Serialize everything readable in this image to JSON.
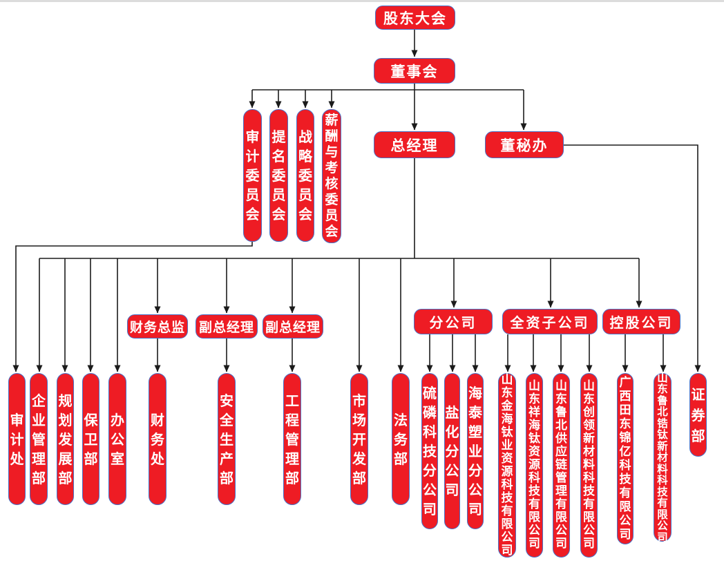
{
  "colors": {
    "node_fill": "#ee1c24",
    "node_border": "#4672c8",
    "connector_line": "#1b1b1b",
    "node_text": "#ffffff"
  },
  "org": {
    "shareholders": "股东大会",
    "board": "董事会",
    "committees": [
      "审计委员会",
      "提名委员会",
      "战略委员会",
      "薪酬与考核委员会"
    ],
    "general_manager": "总经理",
    "board_secretary_office": "董秘办",
    "mid": {
      "cfo": "财务总监",
      "deputy_gm_1": "副总经理",
      "deputy_gm_2": "副总经理",
      "branch_companies": "分公司",
      "wholly_owned": "全资子公司",
      "holding_companies": "控股公司"
    },
    "departments": [
      "审计处",
      "企业管理部",
      "规划发展部",
      "保卫部",
      "办公室",
      "财务处",
      "安全生产部",
      "工程管理部",
      "市场开发部",
      "法务部"
    ],
    "branch_subs": [
      "硫磷科技分公司",
      "盐化分公司",
      "海泰塑业分公司"
    ],
    "wholly_subs": [
      "山东金海钛业资源科技有限公司",
      "山东祥海钛资源科技有限公司",
      "山东鲁北供应链管理有限公司",
      "山东创领新材料科技有限公司"
    ],
    "holding_subs": [
      "广西田东锦亿科技有限公司",
      "山东鲁北锆钛新材料科技有限公司"
    ],
    "securities": "证券部"
  }
}
